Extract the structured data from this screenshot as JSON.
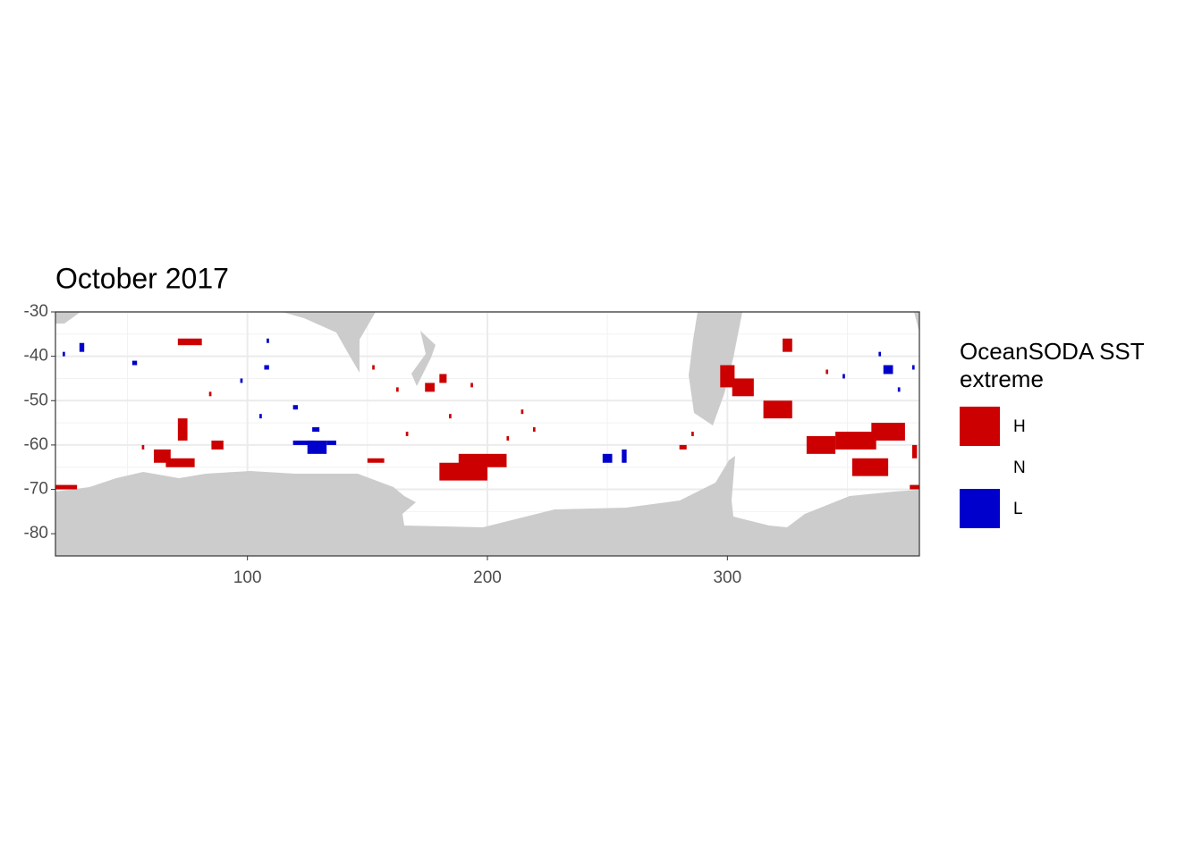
{
  "chart_data": {
    "type": "raster",
    "title": "October 2017",
    "xlim": [
      20,
      380
    ],
    "xticks": [
      100,
      200,
      300
    ],
    "x_minor_ticks": [
      50,
      150,
      250,
      350
    ],
    "ylim": [
      -85,
      -30
    ],
    "yticks": [
      -30,
      -40,
      -50,
      -60,
      -70,
      -80
    ],
    "y_minor_ticks": [
      -35,
      -45,
      -55,
      -65,
      -75
    ],
    "grid": true,
    "legend": {
      "title": "OceanSODA SST extreme",
      "position": "right"
    },
    "series": [
      {
        "name": "H",
        "color": "#CC0000",
        "xmin": [
          20,
          71,
          61,
          66,
          71,
          180,
          188,
          174,
          180,
          297,
          302,
          315,
          323,
          333,
          345,
          360,
          352,
          376,
          377,
          150,
          280,
          85,
          152,
          162,
          193,
          184,
          214,
          208,
          166,
          84,
          219,
          56,
          341,
          285
        ],
        "xmax": [
          29,
          81,
          68,
          78,
          75,
          200,
          208,
          178,
          183,
          303,
          311,
          327,
          327,
          345,
          362,
          374,
          367,
          380,
          379,
          157,
          283,
          90,
          153,
          163,
          194,
          185,
          215,
          209,
          167,
          85,
          220,
          57,
          342,
          286
        ],
        "ymin": [
          -70,
          -37.5,
          -64,
          -65,
          -59,
          -68,
          -65,
          -48,
          -46,
          -47,
          -49,
          -54,
          -39,
          -62,
          -61,
          -59,
          -67,
          -70,
          -63,
          -64,
          -61,
          -61,
          -43,
          -48,
          -47,
          -54,
          -53,
          -59,
          -58,
          -49,
          -57,
          -61,
          -44,
          -58
        ],
        "ymax": [
          -69,
          -36,
          -61,
          -63,
          -54,
          -64,
          -62,
          -46,
          -44,
          -42,
          -45,
          -50,
          -36,
          -58,
          -57,
          -55,
          -63,
          -69,
          -60,
          -63,
          -60,
          -59,
          -42,
          -47,
          -46,
          -53,
          -52,
          -58,
          -57,
          -48,
          -56,
          -60,
          -43,
          -57
        ]
      },
      {
        "name": "N",
        "color": "#FFFFFF",
        "xmin": [],
        "xmax": [],
        "ymin": [],
        "ymax": []
      },
      {
        "name": "L",
        "color": "#0000CC",
        "xmin": [
          119,
          125,
          133,
          248,
          256,
          30,
          52,
          365,
          363,
          377,
          348,
          371,
          107,
          119,
          127,
          97,
          23,
          105,
          108
        ],
        "xmax": [
          128,
          133,
          137,
          252,
          258,
          32,
          54,
          369,
          364,
          378,
          349,
          372,
          109,
          121,
          130,
          98,
          24,
          106,
          109
        ],
        "ymin": [
          -60,
          -62,
          -60,
          -64,
          -64,
          -39,
          -42,
          -44,
          -40,
          -43,
          -45,
          -48,
          -43,
          -52,
          -57,
          -46,
          -40,
          -54,
          -37
        ],
        "ymax": [
          -59,
          -59,
          -59,
          -62,
          -61,
          -37,
          -41,
          -42,
          -39,
          -42,
          -44,
          -47,
          -42,
          -51,
          -56,
          -45,
          -39,
          -53,
          -36
        ]
      }
    ]
  }
}
